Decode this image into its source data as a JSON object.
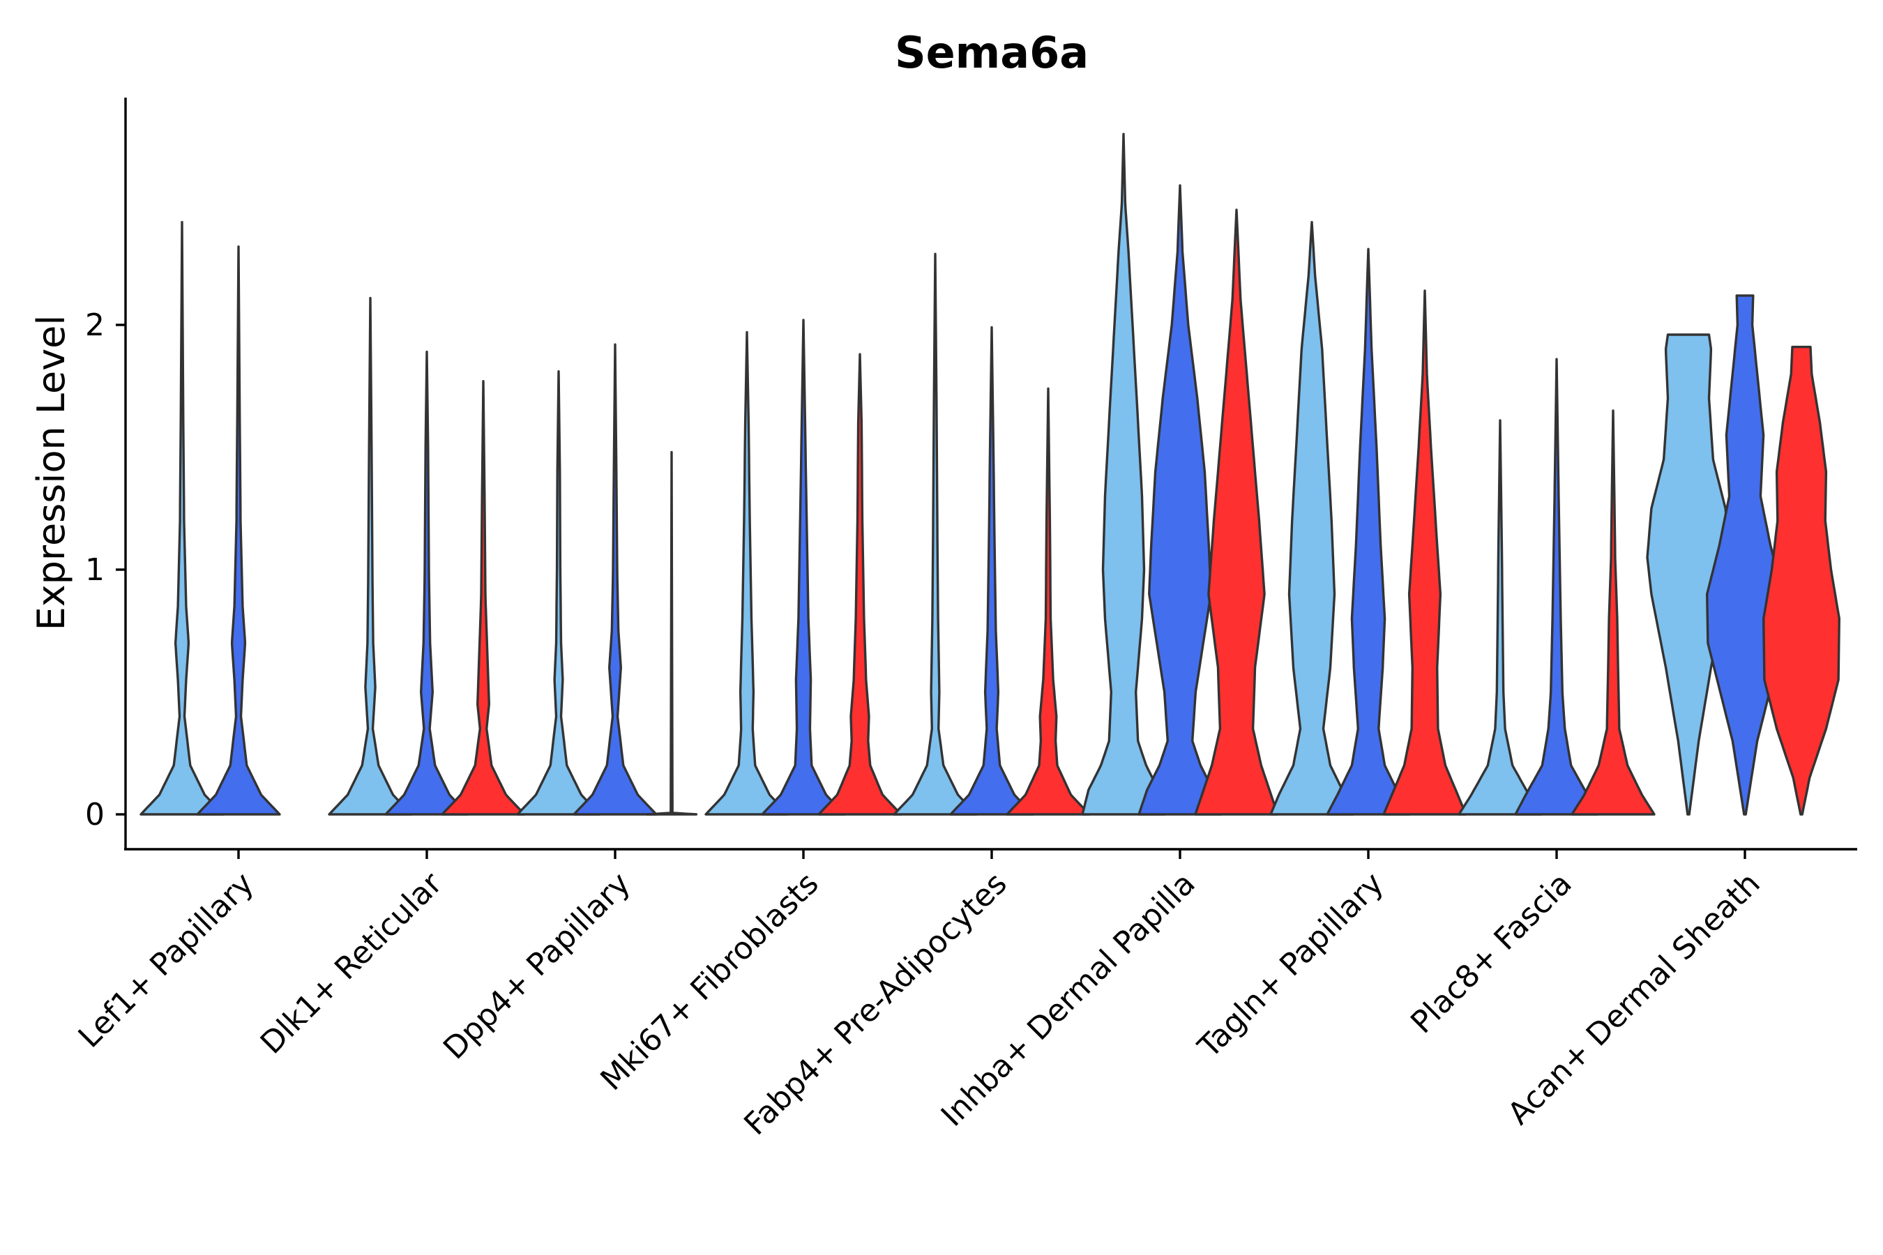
{
  "chart_data": {
    "type": "violin",
    "title": "Sema6a",
    "ylabel": "Expression Level",
    "xlabel": "",
    "ylim": [
      -0.14,
      2.95
    ],
    "yticks": [
      0,
      1,
      2
    ],
    "categories": [
      "Lef1+ Papillary",
      "Dlk1+ Reticular",
      "Dpp4+ Papillary",
      "Mki67+ Fibroblasts",
      "Fabp4+ Pre-Adipocytes",
      "Inhba+ Dermal Papilla",
      "Tagln+ Papillary",
      "Plac8+ Fascia",
      "Acan+ Dermal Sheath"
    ],
    "group_colors": [
      "#7ec0ee",
      "#436eee",
      "#ff3030"
    ],
    "violins": [
      {
        "cat": 0,
        "group": 0,
        "max": 2.42,
        "prof": [
          [
            0,
            1.0
          ],
          [
            0.08,
            0.55
          ],
          [
            0.2,
            0.2
          ],
          [
            0.4,
            0.06
          ],
          [
            0.55,
            0.1
          ],
          [
            0.7,
            0.16
          ],
          [
            0.85,
            0.1
          ],
          [
            1.2,
            0.05
          ],
          [
            1.6,
            0.03
          ],
          [
            2.42,
            0.0
          ]
        ]
      },
      {
        "cat": 0,
        "group": 1,
        "max": 2.32,
        "prof": [
          [
            0,
            1.0
          ],
          [
            0.08,
            0.55
          ],
          [
            0.2,
            0.2
          ],
          [
            0.4,
            0.06
          ],
          [
            0.55,
            0.1
          ],
          [
            0.7,
            0.16
          ],
          [
            0.85,
            0.1
          ],
          [
            1.2,
            0.05
          ],
          [
            1.6,
            0.03
          ],
          [
            2.32,
            0.0
          ]
        ]
      },
      {
        "cat": 1,
        "group": 0,
        "max": 2.11,
        "prof": [
          [
            0,
            1.0
          ],
          [
            0.08,
            0.55
          ],
          [
            0.2,
            0.2
          ],
          [
            0.35,
            0.06
          ],
          [
            0.52,
            0.12
          ],
          [
            0.7,
            0.07
          ],
          [
            1.0,
            0.05
          ],
          [
            1.5,
            0.03
          ],
          [
            2.11,
            0.0
          ]
        ]
      },
      {
        "cat": 1,
        "group": 1,
        "max": 1.89,
        "prof": [
          [
            0,
            1.0
          ],
          [
            0.08,
            0.55
          ],
          [
            0.2,
            0.2
          ],
          [
            0.35,
            0.07
          ],
          [
            0.5,
            0.14
          ],
          [
            0.7,
            0.08
          ],
          [
            1.0,
            0.05
          ],
          [
            1.5,
            0.03
          ],
          [
            1.89,
            0.0
          ]
        ]
      },
      {
        "cat": 1,
        "group": 2,
        "max": 1.77,
        "prof": [
          [
            0,
            1.0
          ],
          [
            0.08,
            0.55
          ],
          [
            0.2,
            0.2
          ],
          [
            0.35,
            0.08
          ],
          [
            0.45,
            0.14
          ],
          [
            0.65,
            0.1
          ],
          [
            0.9,
            0.05
          ],
          [
            1.3,
            0.03
          ],
          [
            1.77,
            0.0
          ]
        ]
      },
      {
        "cat": 2,
        "group": 0,
        "max": 1.81,
        "prof": [
          [
            0,
            1.0
          ],
          [
            0.08,
            0.55
          ],
          [
            0.2,
            0.2
          ],
          [
            0.4,
            0.06
          ],
          [
            0.55,
            0.1
          ],
          [
            0.7,
            0.06
          ],
          [
            1.0,
            0.04
          ],
          [
            1.4,
            0.03
          ],
          [
            1.81,
            0.0
          ]
        ]
      },
      {
        "cat": 2,
        "group": 1,
        "max": 1.92,
        "prof": [
          [
            0,
            1.0
          ],
          [
            0.08,
            0.55
          ],
          [
            0.2,
            0.2
          ],
          [
            0.4,
            0.06
          ],
          [
            0.6,
            0.14
          ],
          [
            0.75,
            0.08
          ],
          [
            1.0,
            0.05
          ],
          [
            1.4,
            0.03
          ],
          [
            1.92,
            0.0
          ]
        ]
      },
      {
        "cat": 2,
        "group": 2,
        "max": 1.48,
        "prof": [
          [
            0,
            0.6
          ],
          [
            0.006,
            0.02
          ],
          [
            1.48,
            0.0
          ]
        ]
      },
      {
        "cat": 3,
        "group": 0,
        "max": 1.97,
        "prof": [
          [
            0,
            1.0
          ],
          [
            0.08,
            0.55
          ],
          [
            0.2,
            0.2
          ],
          [
            0.35,
            0.14
          ],
          [
            0.5,
            0.16
          ],
          [
            0.8,
            0.11
          ],
          [
            1.2,
            0.07
          ],
          [
            1.6,
            0.04
          ],
          [
            1.97,
            0.0
          ]
        ]
      },
      {
        "cat": 3,
        "group": 1,
        "max": 2.02,
        "prof": [
          [
            0,
            1.0
          ],
          [
            0.08,
            0.55
          ],
          [
            0.2,
            0.2
          ],
          [
            0.35,
            0.16
          ],
          [
            0.55,
            0.18
          ],
          [
            0.8,
            0.12
          ],
          [
            1.1,
            0.09
          ],
          [
            1.5,
            0.05
          ],
          [
            2.02,
            0.0
          ]
        ]
      },
      {
        "cat": 3,
        "group": 2,
        "max": 1.88,
        "prof": [
          [
            0,
            1.0
          ],
          [
            0.08,
            0.55
          ],
          [
            0.2,
            0.25
          ],
          [
            0.3,
            0.2
          ],
          [
            0.4,
            0.22
          ],
          [
            0.55,
            0.15
          ],
          [
            0.8,
            0.1
          ],
          [
            1.2,
            0.06
          ],
          [
            1.6,
            0.04
          ],
          [
            1.88,
            0.0
          ]
        ]
      },
      {
        "cat": 4,
        "group": 0,
        "max": 2.29,
        "prof": [
          [
            0,
            1.0
          ],
          [
            0.08,
            0.55
          ],
          [
            0.2,
            0.2
          ],
          [
            0.35,
            0.08
          ],
          [
            0.5,
            0.1
          ],
          [
            0.8,
            0.07
          ],
          [
            1.2,
            0.05
          ],
          [
            1.7,
            0.03
          ],
          [
            2.29,
            0.0
          ]
        ]
      },
      {
        "cat": 4,
        "group": 1,
        "max": 1.99,
        "prof": [
          [
            0,
            1.0
          ],
          [
            0.08,
            0.55
          ],
          [
            0.2,
            0.2
          ],
          [
            0.35,
            0.12
          ],
          [
            0.5,
            0.16
          ],
          [
            0.75,
            0.1
          ],
          [
            1.1,
            0.07
          ],
          [
            1.5,
            0.04
          ],
          [
            1.99,
            0.0
          ]
        ]
      },
      {
        "cat": 4,
        "group": 2,
        "max": 1.74,
        "prof": [
          [
            0,
            1.0
          ],
          [
            0.08,
            0.55
          ],
          [
            0.2,
            0.22
          ],
          [
            0.3,
            0.18
          ],
          [
            0.4,
            0.2
          ],
          [
            0.55,
            0.12
          ],
          [
            0.8,
            0.06
          ],
          [
            1.2,
            0.04
          ],
          [
            1.74,
            0.0
          ]
        ]
      },
      {
        "cat": 5,
        "group": 0,
        "max": 2.78,
        "prof": [
          [
            0,
            1.0
          ],
          [
            0.1,
            0.85
          ],
          [
            0.2,
            0.55
          ],
          [
            0.3,
            0.35
          ],
          [
            0.5,
            0.3
          ],
          [
            0.8,
            0.45
          ],
          [
            1.0,
            0.5
          ],
          [
            1.3,
            0.45
          ],
          [
            1.7,
            0.32
          ],
          [
            2.0,
            0.22
          ],
          [
            2.3,
            0.12
          ],
          [
            2.5,
            0.04
          ],
          [
            2.78,
            0.0
          ]
        ]
      },
      {
        "cat": 5,
        "group": 1,
        "max": 2.57,
        "prof": [
          [
            0,
            1.0
          ],
          [
            0.1,
            0.8
          ],
          [
            0.2,
            0.5
          ],
          [
            0.3,
            0.3
          ],
          [
            0.5,
            0.38
          ],
          [
            0.9,
            0.75
          ],
          [
            1.1,
            0.7
          ],
          [
            1.4,
            0.6
          ],
          [
            1.7,
            0.42
          ],
          [
            2.0,
            0.2
          ],
          [
            2.3,
            0.06
          ],
          [
            2.57,
            0.0
          ]
        ]
      },
      {
        "cat": 5,
        "group": 2,
        "max": 2.47,
        "prof": [
          [
            0,
            1.0
          ],
          [
            0.1,
            0.8
          ],
          [
            0.2,
            0.6
          ],
          [
            0.35,
            0.4
          ],
          [
            0.6,
            0.45
          ],
          [
            0.9,
            0.68
          ],
          [
            1.2,
            0.55
          ],
          [
            1.5,
            0.4
          ],
          [
            1.8,
            0.25
          ],
          [
            2.1,
            0.1
          ],
          [
            2.47,
            0.0
          ]
        ]
      },
      {
        "cat": 6,
        "group": 0,
        "max": 2.42,
        "prof": [
          [
            0,
            1.0
          ],
          [
            0.08,
            0.8
          ],
          [
            0.2,
            0.45
          ],
          [
            0.35,
            0.28
          ],
          [
            0.6,
            0.45
          ],
          [
            0.9,
            0.55
          ],
          [
            1.2,
            0.48
          ],
          [
            1.5,
            0.38
          ],
          [
            1.9,
            0.25
          ],
          [
            2.2,
            0.08
          ],
          [
            2.42,
            0.0
          ]
        ]
      },
      {
        "cat": 6,
        "group": 1,
        "max": 2.31,
        "prof": [
          [
            0,
            1.0
          ],
          [
            0.08,
            0.75
          ],
          [
            0.2,
            0.4
          ],
          [
            0.35,
            0.25
          ],
          [
            0.6,
            0.35
          ],
          [
            0.8,
            0.4
          ],
          [
            1.1,
            0.3
          ],
          [
            1.5,
            0.2
          ],
          [
            1.9,
            0.08
          ],
          [
            2.31,
            0.0
          ]
        ]
      },
      {
        "cat": 6,
        "group": 2,
        "max": 2.14,
        "prof": [
          [
            0,
            1.0
          ],
          [
            0.08,
            0.8
          ],
          [
            0.2,
            0.5
          ],
          [
            0.35,
            0.32
          ],
          [
            0.6,
            0.3
          ],
          [
            0.9,
            0.38
          ],
          [
            1.1,
            0.3
          ],
          [
            1.5,
            0.15
          ],
          [
            1.8,
            0.05
          ],
          [
            2.14,
            0.0
          ]
        ]
      },
      {
        "cat": 7,
        "group": 0,
        "max": 1.61,
        "prof": [
          [
            0,
            1.0
          ],
          [
            0.08,
            0.7
          ],
          [
            0.2,
            0.3
          ],
          [
            0.35,
            0.12
          ],
          [
            0.5,
            0.08
          ],
          [
            0.8,
            0.06
          ],
          [
            1.1,
            0.04
          ],
          [
            1.61,
            0.0
          ]
        ]
      },
      {
        "cat": 7,
        "group": 1,
        "max": 1.86,
        "prof": [
          [
            0,
            1.0
          ],
          [
            0.08,
            0.75
          ],
          [
            0.2,
            0.35
          ],
          [
            0.35,
            0.2
          ],
          [
            0.5,
            0.14
          ],
          [
            0.8,
            0.1
          ],
          [
            1.1,
            0.07
          ],
          [
            1.4,
            0.04
          ],
          [
            1.86,
            0.0
          ]
        ]
      },
      {
        "cat": 7,
        "group": 2,
        "max": 1.65,
        "prof": [
          [
            0,
            1.0
          ],
          [
            0.08,
            0.7
          ],
          [
            0.2,
            0.35
          ],
          [
            0.35,
            0.15
          ],
          [
            0.6,
            0.12
          ],
          [
            0.8,
            0.1
          ],
          [
            1.05,
            0.05
          ],
          [
            1.3,
            0.03
          ],
          [
            1.65,
            0.0
          ]
        ]
      },
      {
        "cat": 8,
        "group": 0,
        "max": 1.96,
        "prof": [
          [
            0,
            0.02
          ],
          [
            0.3,
            0.25
          ],
          [
            0.6,
            0.55
          ],
          [
            0.9,
            0.9
          ],
          [
            1.05,
            1.0
          ],
          [
            1.25,
            0.9
          ],
          [
            1.45,
            0.6
          ],
          [
            1.7,
            0.5
          ],
          [
            1.9,
            0.55
          ],
          [
            1.96,
            0.5
          ]
        ]
      },
      {
        "cat": 8,
        "group": 1,
        "max": 2.12,
        "prof": [
          [
            0,
            0.02
          ],
          [
            0.3,
            0.3
          ],
          [
            0.5,
            0.6
          ],
          [
            0.7,
            0.9
          ],
          [
            0.9,
            0.92
          ],
          [
            1.1,
            0.62
          ],
          [
            1.3,
            0.38
          ],
          [
            1.55,
            0.45
          ],
          [
            1.8,
            0.3
          ],
          [
            2.0,
            0.18
          ],
          [
            2.12,
            0.2
          ]
        ]
      },
      {
        "cat": 8,
        "group": 2,
        "max": 1.91,
        "prof": [
          [
            0,
            0.02
          ],
          [
            0.15,
            0.2
          ],
          [
            0.35,
            0.6
          ],
          [
            0.55,
            0.9
          ],
          [
            0.8,
            0.92
          ],
          [
            1.0,
            0.72
          ],
          [
            1.2,
            0.58
          ],
          [
            1.4,
            0.6
          ],
          [
            1.6,
            0.45
          ],
          [
            1.8,
            0.25
          ],
          [
            1.91,
            0.22
          ]
        ]
      }
    ]
  }
}
